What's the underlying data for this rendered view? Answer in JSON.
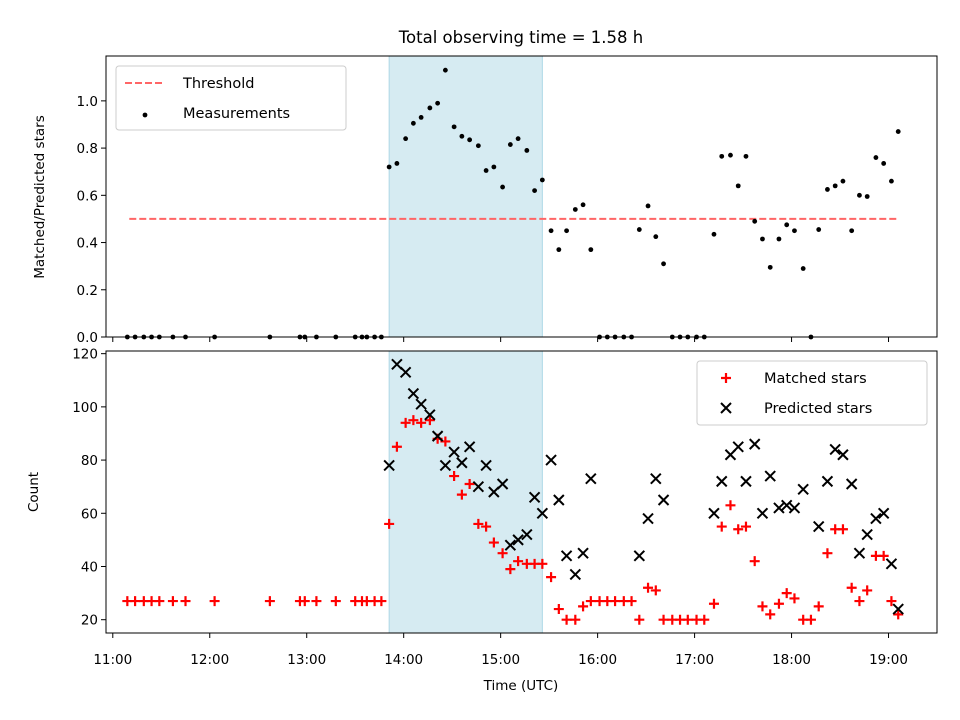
{
  "figure": {
    "title": "Total observing time = 1.58 h"
  },
  "chart_data": [
    {
      "id": "top",
      "type": "scatter",
      "ylabel": "Matched/Predicted stars",
      "xlim": [
        10.93,
        19.5
      ],
      "ylim": [
        0,
        1.19
      ],
      "yticks": [
        0.0,
        0.2,
        0.4,
        0.6,
        0.8,
        1.0
      ],
      "ytick_labels": [
        "0.0",
        "0.2",
        "0.4",
        "0.6",
        "0.8",
        "1.0"
      ],
      "shaded_span": [
        13.85,
        15.43
      ],
      "shade_color": "#add8e6",
      "legend": {
        "position": "upper-left",
        "entries": [
          {
            "label": "Threshold",
            "marker": "dash",
            "color": "#ff6666"
          },
          {
            "label": "Measurements",
            "marker": "dot",
            "color": "#000000"
          }
        ]
      },
      "threshold": {
        "name": "Threshold",
        "y": 0.5,
        "x": [
          11.17,
          19.1
        ],
        "color": "#ff6666"
      },
      "series": [
        {
          "name": "Measurements",
          "color": "#000000",
          "points": [
            [
              11.15,
              0
            ],
            [
              11.23,
              0
            ],
            [
              11.32,
              0
            ],
            [
              11.4,
              0
            ],
            [
              11.48,
              0
            ],
            [
              11.62,
              0
            ],
            [
              11.75,
              0
            ],
            [
              12.05,
              0
            ],
            [
              12.62,
              0
            ],
            [
              12.93,
              0
            ],
            [
              12.98,
              0
            ],
            [
              13.1,
              0
            ],
            [
              13.3,
              0
            ],
            [
              13.5,
              0
            ],
            [
              13.57,
              0
            ],
            [
              13.62,
              0
            ],
            [
              13.7,
              0
            ],
            [
              13.77,
              0
            ],
            [
              13.85,
              0.72
            ],
            [
              13.93,
              0.735
            ],
            [
              14.02,
              0.84
            ],
            [
              14.1,
              0.905
            ],
            [
              14.18,
              0.93
            ],
            [
              14.27,
              0.97
            ],
            [
              14.35,
              0.99
            ],
            [
              14.43,
              1.13
            ],
            [
              14.52,
              0.89
            ],
            [
              14.6,
              0.85
            ],
            [
              14.68,
              0.835
            ],
            [
              14.77,
              0.81
            ],
            [
              14.85,
              0.705
            ],
            [
              14.93,
              0.72
            ],
            [
              15.02,
              0.635
            ],
            [
              15.1,
              0.815
            ],
            [
              15.18,
              0.84
            ],
            [
              15.27,
              0.79
            ],
            [
              15.35,
              0.62
            ],
            [
              15.43,
              0.665
            ],
            [
              15.52,
              0.45
            ],
            [
              15.6,
              0.37
            ],
            [
              15.68,
              0.45
            ],
            [
              15.77,
              0.54
            ],
            [
              15.85,
              0.56
            ],
            [
              15.93,
              0.37
            ],
            [
              16.02,
              0
            ],
            [
              16.1,
              0
            ],
            [
              16.18,
              0
            ],
            [
              16.27,
              0
            ],
            [
              16.35,
              0
            ],
            [
              16.43,
              0.455
            ],
            [
              16.52,
              0.555
            ],
            [
              16.6,
              0.425
            ],
            [
              16.68,
              0.31
            ],
            [
              16.77,
              0
            ],
            [
              16.85,
              0
            ],
            [
              16.93,
              0
            ],
            [
              17.02,
              0
            ],
            [
              17.1,
              0
            ],
            [
              17.2,
              0.435
            ],
            [
              17.28,
              0.765
            ],
            [
              17.37,
              0.77
            ],
            [
              17.45,
              0.64
            ],
            [
              17.53,
              0.765
            ],
            [
              17.62,
              0.49
            ],
            [
              17.7,
              0.415
            ],
            [
              17.78,
              0.295
            ],
            [
              17.87,
              0.415
            ],
            [
              17.95,
              0.475
            ],
            [
              18.03,
              0.45
            ],
            [
              18.12,
              0.29
            ],
            [
              18.2,
              0
            ],
            [
              18.28,
              0.455
            ],
            [
              18.37,
              0.625
            ],
            [
              18.45,
              0.64
            ],
            [
              18.53,
              0.66
            ],
            [
              18.62,
              0.45
            ],
            [
              18.7,
              0.6
            ],
            [
              18.78,
              0.595
            ],
            [
              18.87,
              0.76
            ],
            [
              18.95,
              0.735
            ],
            [
              19.03,
              0.66
            ],
            [
              19.1,
              0.87
            ]
          ]
        }
      ]
    },
    {
      "id": "bottom",
      "type": "scatter",
      "xlabel": "Time (UTC)",
      "ylabel": "Count",
      "xlim": [
        10.93,
        19.5
      ],
      "ylim": [
        15,
        121
      ],
      "xticks": [
        11,
        12,
        13,
        14,
        15,
        16,
        17,
        18,
        19
      ],
      "xtick_labels": [
        "11:00",
        "12:00",
        "13:00",
        "14:00",
        "15:00",
        "16:00",
        "17:00",
        "18:00",
        "19:00"
      ],
      "yticks": [
        20,
        40,
        60,
        80,
        100,
        120
      ],
      "ytick_labels": [
        "20",
        "40",
        "60",
        "80",
        "100",
        "120"
      ],
      "shaded_span": [
        13.85,
        15.43
      ],
      "shade_color": "#add8e6",
      "legend": {
        "position": "upper-right",
        "entries": [
          {
            "label": "Matched stars",
            "marker": "plus",
            "color": "#ff0000"
          },
          {
            "label": "Predicted stars",
            "marker": "x",
            "color": "#000000"
          }
        ]
      },
      "series": [
        {
          "name": "Matched stars",
          "marker": "plus",
          "color": "#ff0000",
          "points": [
            [
              11.15,
              27
            ],
            [
              11.23,
              27
            ],
            [
              11.32,
              27
            ],
            [
              11.4,
              27
            ],
            [
              11.48,
              27
            ],
            [
              11.62,
              27
            ],
            [
              11.75,
              27
            ],
            [
              12.05,
              27
            ],
            [
              12.62,
              27
            ],
            [
              12.93,
              27
            ],
            [
              12.98,
              27
            ],
            [
              13.1,
              27
            ],
            [
              13.3,
              27
            ],
            [
              13.5,
              27
            ],
            [
              13.57,
              27
            ],
            [
              13.62,
              27
            ],
            [
              13.7,
              27
            ],
            [
              13.77,
              27
            ],
            [
              13.85,
              56
            ],
            [
              13.93,
              85
            ],
            [
              14.02,
              94
            ],
            [
              14.1,
              95
            ],
            [
              14.18,
              94
            ],
            [
              14.27,
              95
            ],
            [
              14.35,
              88
            ],
            [
              14.43,
              87
            ],
            [
              14.52,
              74
            ],
            [
              14.6,
              67
            ],
            [
              14.68,
              71
            ],
            [
              14.77,
              56
            ],
            [
              14.85,
              55
            ],
            [
              14.93,
              49
            ],
            [
              15.02,
              45
            ],
            [
              15.1,
              39
            ],
            [
              15.18,
              42
            ],
            [
              15.27,
              41
            ],
            [
              15.35,
              41
            ],
            [
              15.43,
              41
            ],
            [
              15.52,
              36
            ],
            [
              15.6,
              24
            ],
            [
              15.68,
              20
            ],
            [
              15.77,
              20
            ],
            [
              15.85,
              25
            ],
            [
              15.93,
              27
            ],
            [
              16.02,
              27
            ],
            [
              16.1,
              27
            ],
            [
              16.18,
              27
            ],
            [
              16.27,
              27
            ],
            [
              16.35,
              27
            ],
            [
              16.43,
              20
            ],
            [
              16.52,
              32
            ],
            [
              16.6,
              31
            ],
            [
              16.68,
              20
            ],
            [
              16.77,
              20
            ],
            [
              16.85,
              20
            ],
            [
              16.93,
              20
            ],
            [
              17.02,
              20
            ],
            [
              17.1,
              20
            ],
            [
              17.2,
              26
            ],
            [
              17.28,
              55
            ],
            [
              17.37,
              63
            ],
            [
              17.45,
              54
            ],
            [
              17.53,
              55
            ],
            [
              17.62,
              42
            ],
            [
              17.7,
              25
            ],
            [
              17.78,
              22
            ],
            [
              17.87,
              26
            ],
            [
              17.95,
              30
            ],
            [
              18.03,
              28
            ],
            [
              18.12,
              20
            ],
            [
              18.2,
              20
            ],
            [
              18.28,
              25
            ],
            [
              18.37,
              45
            ],
            [
              18.45,
              54
            ],
            [
              18.53,
              54
            ],
            [
              18.62,
              32
            ],
            [
              18.7,
              27
            ],
            [
              18.78,
              31
            ],
            [
              18.87,
              44
            ],
            [
              18.95,
              44
            ],
            [
              19.03,
              27
            ],
            [
              19.1,
              22
            ]
          ]
        },
        {
          "name": "Predicted stars",
          "marker": "x",
          "color": "#000000",
          "points": [
            [
              13.85,
              78
            ],
            [
              13.93,
              116
            ],
            [
              14.02,
              113
            ],
            [
              14.1,
              105
            ],
            [
              14.18,
              101
            ],
            [
              14.27,
              97
            ],
            [
              14.35,
              89
            ],
            [
              14.43,
              78
            ],
            [
              14.52,
              83
            ],
            [
              14.6,
              79
            ],
            [
              14.68,
              85
            ],
            [
              14.77,
              70
            ],
            [
              14.85,
              78
            ],
            [
              14.93,
              68
            ],
            [
              15.02,
              71
            ],
            [
              15.1,
              48
            ],
            [
              15.18,
              50
            ],
            [
              15.27,
              52
            ],
            [
              15.35,
              66
            ],
            [
              15.43,
              60
            ],
            [
              15.52,
              80
            ],
            [
              15.6,
              65
            ],
            [
              15.68,
              44
            ],
            [
              15.77,
              37
            ],
            [
              15.85,
              45
            ],
            [
              15.93,
              73
            ],
            [
              16.43,
              44
            ],
            [
              16.52,
              58
            ],
            [
              16.6,
              73
            ],
            [
              16.68,
              65
            ],
            [
              17.2,
              60
            ],
            [
              17.28,
              72
            ],
            [
              17.37,
              82
            ],
            [
              17.45,
              85
            ],
            [
              17.53,
              72
            ],
            [
              17.62,
              86
            ],
            [
              17.7,
              60
            ],
            [
              17.78,
              74
            ],
            [
              17.87,
              62
            ],
            [
              17.95,
              63
            ],
            [
              18.03,
              62
            ],
            [
              18.12,
              69
            ],
            [
              18.28,
              55
            ],
            [
              18.37,
              72
            ],
            [
              18.45,
              84
            ],
            [
              18.53,
              82
            ],
            [
              18.62,
              71
            ],
            [
              18.7,
              45
            ],
            [
              18.78,
              52
            ],
            [
              18.87,
              58
            ],
            [
              18.95,
              60
            ],
            [
              19.03,
              41
            ],
            [
              19.1,
              24
            ]
          ]
        }
      ]
    }
  ]
}
